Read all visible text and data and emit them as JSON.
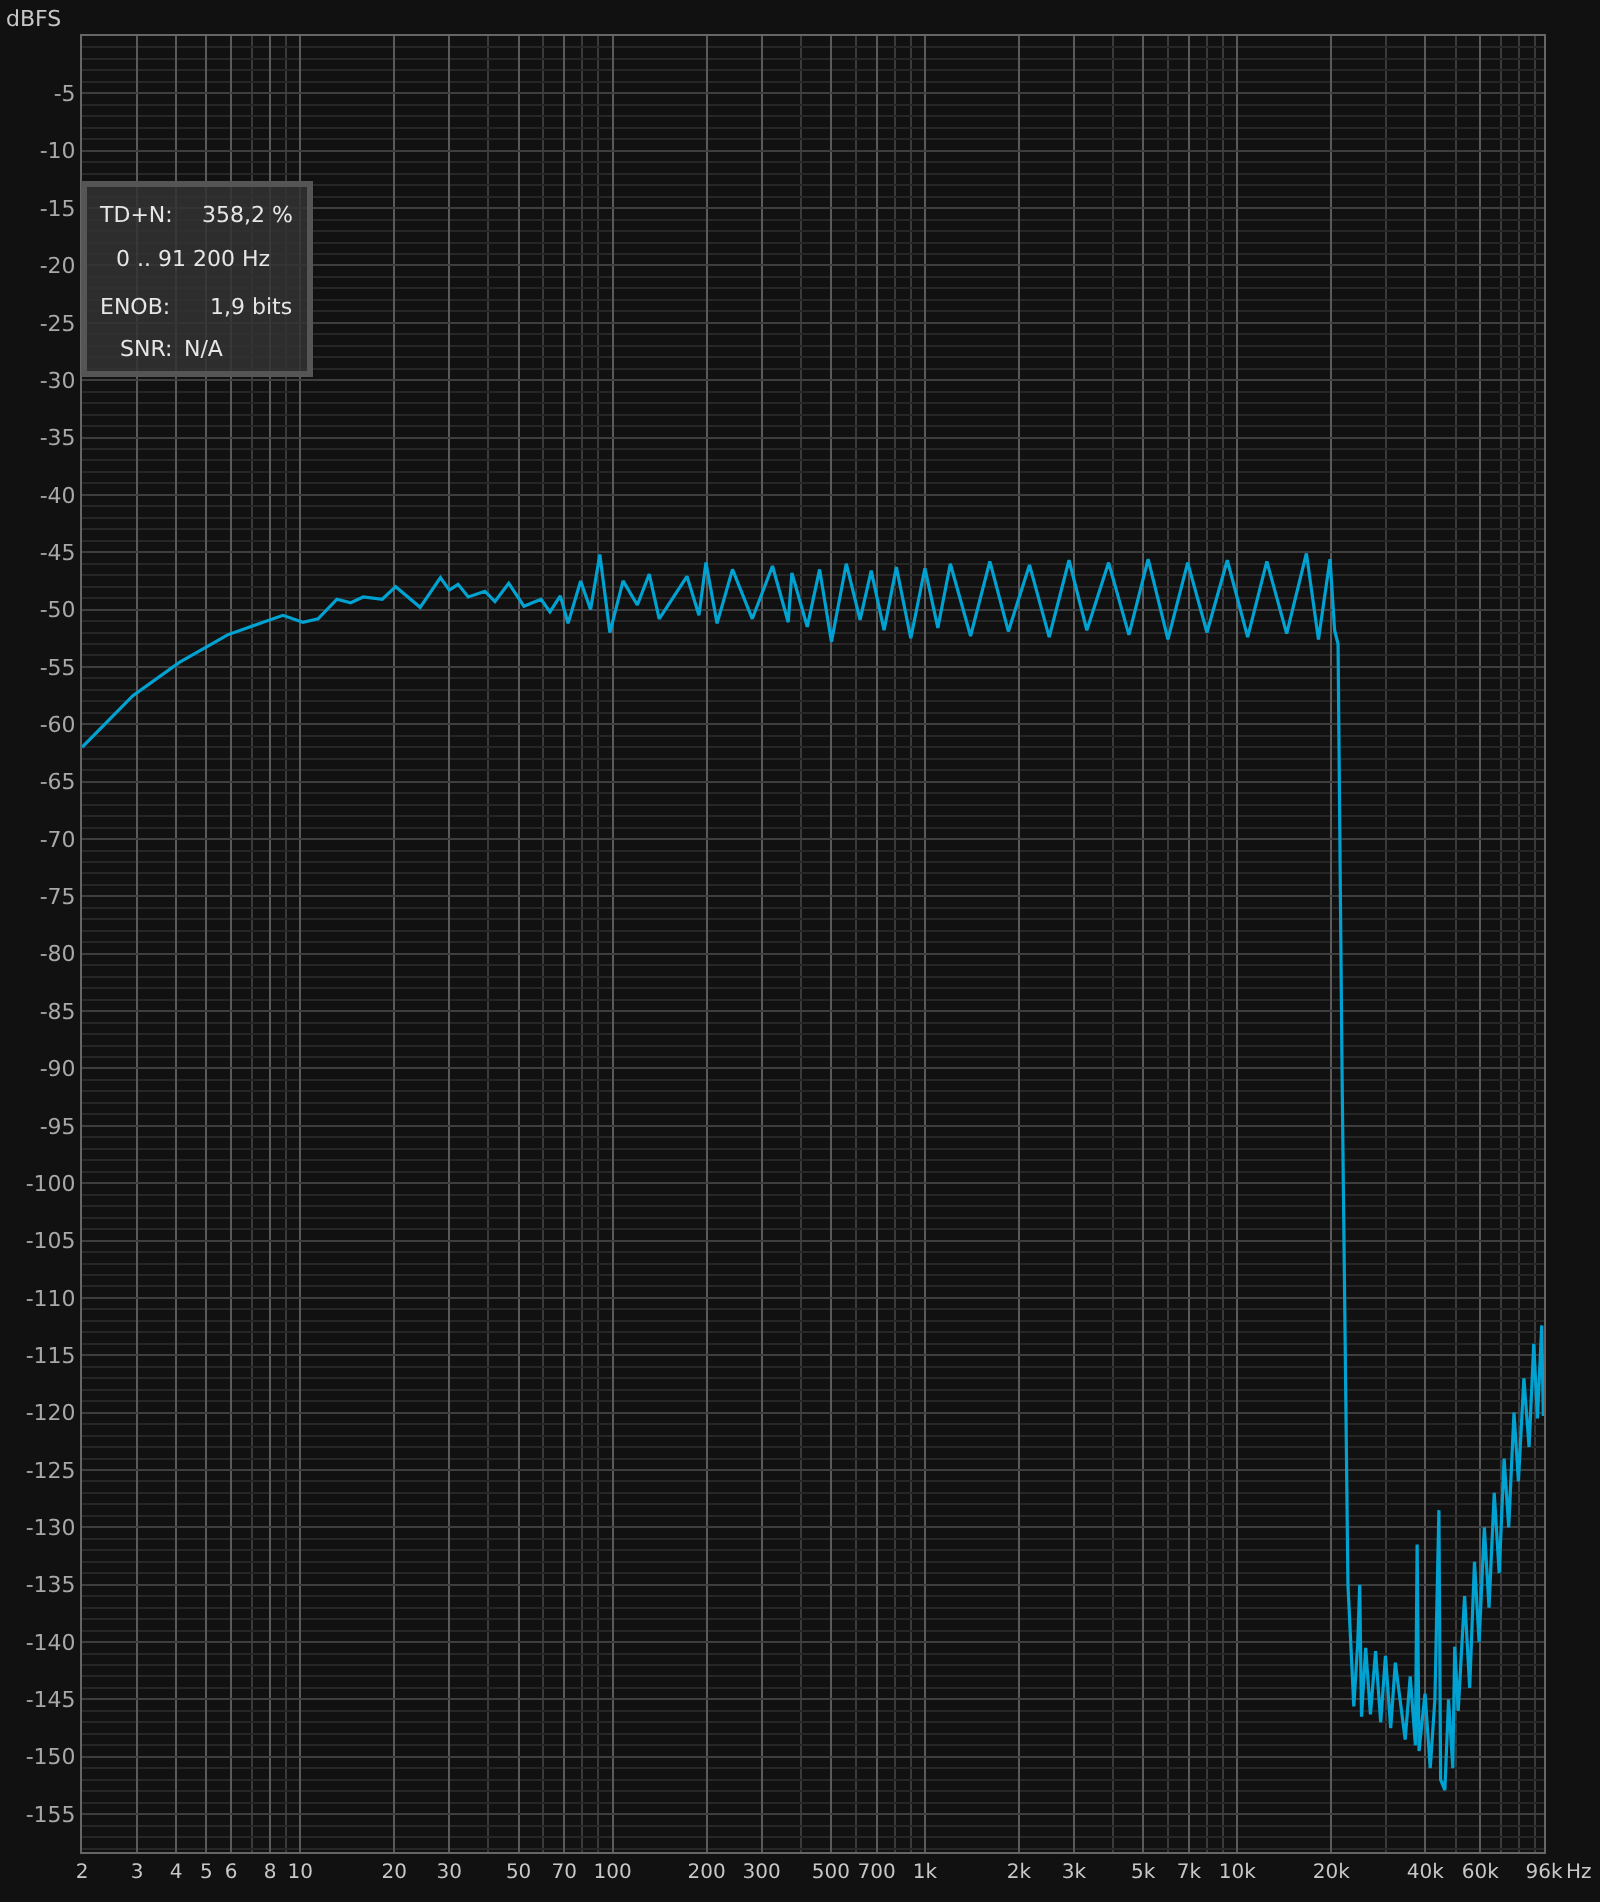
{
  "chart_data": {
    "type": "line",
    "ylabel": "dBFS",
    "annotations": [
      "TD+N:",
      "358,2 %",
      "0 .. 91 200 Hz",
      "ENOB:",
      "1,9 bits",
      "SNR:",
      "N/A"
    ],
    "log": "x",
    "grid": true,
    "marker": "none",
    "line_style": "solid",
    "xlim": [
      2,
      96000
    ],
    "ylim": [
      -158.3,
      0
    ],
    "xticks": [
      2,
      3,
      4,
      5,
      6,
      8,
      10,
      20,
      30,
      50,
      70,
      100,
      200,
      300,
      500,
      700,
      {
        "value": 1000,
        "label": "1k"
      },
      {
        "value": 2000,
        "label": "2k"
      },
      {
        "value": 3000,
        "label": "3k"
      },
      {
        "value": 5000,
        "label": "5k"
      },
      {
        "value": 7000,
        "label": "7k"
      },
      {
        "value": 10000,
        "label": "10k"
      },
      {
        "value": 20000,
        "label": "20k"
      },
      {
        "value": 40000,
        "label": "40k"
      },
      {
        "value": 60000,
        "label": "60k"
      },
      {
        "value": 96000,
        "label": "96k"
      }
    ],
    "xlabel": "Hz",
    "yticks": [
      -5,
      -10,
      -15,
      -20,
      -25,
      -30,
      -35,
      -40,
      -45,
      -50,
      -55,
      -60,
      -65,
      -70,
      -75,
      -80,
      -85,
      -90,
      -95,
      -100,
      -105,
      -110,
      -115,
      -120,
      -125,
      -130,
      -135,
      -140,
      -145,
      -150,
      -155
    ],
    "series": [
      {
        "color": "#00a2d2",
        "x": [
          2,
          2.91,
          4.1,
          5.85,
          7.6,
          8.8,
          10.2,
          11.4,
          13.1,
          14.5,
          15.9,
          18.3,
          20.2,
          24.2,
          28.1,
          30,
          32,
          34.5,
          39,
          42,
          46.5,
          52,
          59,
          63,
          68,
          72,
          79,
          85,
          91,
          98,
          108,
          120,
          131,
          141,
          173,
          189,
          199,
          216,
          242,
          280,
          325,
          365,
          375,
          420,
          460,
          502,
          560,
          620,
          673,
          740,
          810,
          901,
          1000,
          1100,
          1206,
          1400,
          1614,
          1850,
          2162,
          2500,
          2893,
          3300,
          3874,
          4500,
          5186,
          6000,
          6941,
          8000,
          9293,
          10800,
          12440,
          14400,
          16650,
          18200,
          19820,
          20500,
          21030,
          21650,
          22620,
          23620,
          24320,
          24670,
          25000,
          25780,
          26700,
          27730,
          28800,
          29830,
          31000,
          32080,
          34500,
          35800,
          37200,
          37670,
          38200,
          39930,
          41500,
          42950,
          44230,
          44800,
          46220,
          47500,
          49000,
          49700,
          51000,
          53460,
          55500,
          57500,
          59500,
          61840,
          64000,
          66510,
          69000,
          71540,
          74000,
          76940,
          79500,
          82750,
          86000,
          89000,
          91500,
          94400,
          95500
        ],
        "values": [
          -62.0,
          -57.5,
          -54.6,
          -52.2,
          -51.1,
          -50.5,
          -51.1,
          -50.8,
          -49.1,
          -49.4,
          -48.9,
          -49.1,
          -48.0,
          -49.8,
          -47.2,
          -48.3,
          -47.8,
          -48.9,
          -48.4,
          -49.3,
          -47.7,
          -49.7,
          -49.1,
          -50.2,
          -48.8,
          -51.2,
          -47.5,
          -50.0,
          -45.2,
          -52.0,
          -47.5,
          -49.6,
          -46.9,
          -50.8,
          -47.1,
          -50.5,
          -45.9,
          -51.2,
          -46.5,
          -50.8,
          -46.2,
          -51.1,
          -46.8,
          -51.5,
          -46.5,
          -52.8,
          -46.0,
          -50.9,
          -46.6,
          -51.8,
          -46.3,
          -52.5,
          -46.4,
          -51.6,
          -46.0,
          -52.3,
          -45.8,
          -51.9,
          -46.1,
          -52.4,
          -45.7,
          -51.8,
          -45.9,
          -52.2,
          -45.6,
          -52.6,
          -45.9,
          -52.0,
          -45.7,
          -52.4,
          -45.8,
          -52.1,
          -45.1,
          -52.6,
          -45.6,
          -51.8,
          -53.0,
          -90,
          -135,
          -145.6,
          -140,
          -135,
          -146.5,
          -140.5,
          -146.3,
          -140.8,
          -147.0,
          -141.2,
          -147.5,
          -141.8,
          -148.5,
          -143,
          -149,
          -131.5,
          -149.5,
          -144.5,
          -151,
          -145,
          -128.5,
          -152,
          -152.9,
          -145,
          -151,
          -140.4,
          -146,
          -136,
          -144,
          -133,
          -140,
          -130,
          -137,
          -127,
          -134,
          -124,
          -130,
          -120,
          -126,
          -117,
          -123,
          -114,
          -120.5,
          -112.4,
          -120.3
        ]
      }
    ]
  }
}
